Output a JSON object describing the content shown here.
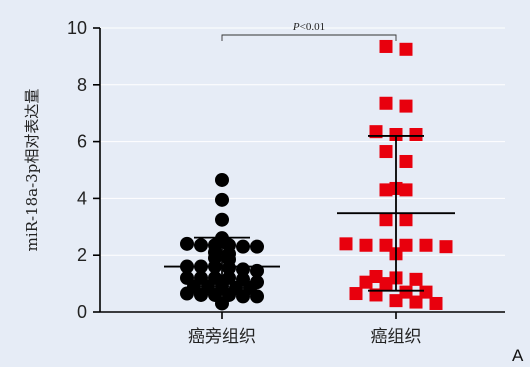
{
  "panel_label": "A",
  "chart_data": {
    "type": "scatter",
    "title": "",
    "xlabel": "",
    "ylabel": "miR-18a-3p相对表达量",
    "ylim": [
      0,
      10
    ],
    "yticks": [
      0,
      2,
      4,
      6,
      8,
      10
    ],
    "grid": true,
    "categories": [
      "癌旁组织",
      "癌组织"
    ],
    "significance": {
      "label": "P<0.01",
      "between": [
        "癌旁组织",
        "癌组织"
      ]
    },
    "series": [
      {
        "category": "癌旁组织",
        "marker": "circle",
        "color": "#000000",
        "mean": 1.6,
        "sd_low": 0.62,
        "sd_high": 2.62,
        "points": [
          4.65,
          3.95,
          3.25,
          2.6,
          2.4,
          2.35,
          2.35,
          2.35,
          2.3,
          2.3,
          2.1,
          2.05,
          1.9,
          1.85,
          1.6,
          1.6,
          1.6,
          1.55,
          1.5,
          1.45,
          1.2,
          1.2,
          1.2,
          1.2,
          1.15,
          1.05,
          0.9,
          0.9,
          0.9,
          0.85,
          0.85,
          0.65,
          0.6,
          0.6,
          0.6,
          0.55,
          0.55,
          0.3
        ]
      },
      {
        "category": "癌组织",
        "marker": "square",
        "color": "#e8000d",
        "mean": 3.48,
        "sd_low": 0.75,
        "sd_high": 6.2,
        "points": [
          9.35,
          9.25,
          7.35,
          7.25,
          6.35,
          6.25,
          6.25,
          5.65,
          5.3,
          4.35,
          4.3,
          4.3,
          3.25,
          3.25,
          2.4,
          2.35,
          2.35,
          2.35,
          2.35,
          2.3,
          2.05,
          1.25,
          1.2,
          1.15,
          1.05,
          1.0,
          0.7,
          0.7,
          0.65,
          0.6,
          0.4,
          0.35,
          0.3
        ]
      }
    ]
  }
}
